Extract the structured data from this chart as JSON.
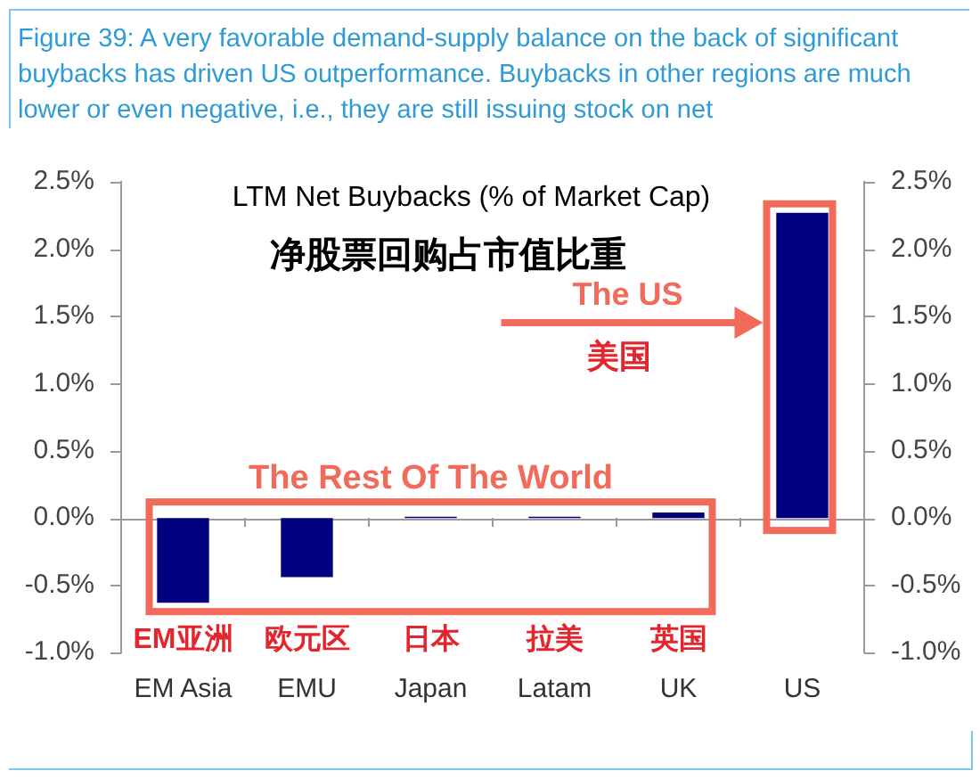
{
  "chart_data": {
    "type": "bar",
    "title": "Figure 39: A very favorable demand-supply balance on the back of significant buybacks has driven US outperformance. Buybacks in other regions are much lower or even negative, i.e., they are still issuing stock on net",
    "subtitle": "LTM Net Buybacks (% of Market Cap)",
    "categories": [
      "EM Asia",
      "EMU",
      "Japan",
      "Latam",
      "UK",
      "US"
    ],
    "values": [
      -0.63,
      -0.44,
      0.01,
      0.01,
      0.04,
      2.27
    ],
    "color": "#000080",
    "ylim": [
      -1,
      2.5
    ],
    "yticks": [
      {
        "value": -1,
        "label": "-1.0%"
      },
      {
        "value": -0.5,
        "label": "-0.5%"
      },
      {
        "value": 0,
        "label": "0.0%"
      },
      {
        "value": 0.5,
        "label": "0.5%"
      },
      {
        "value": 1,
        "label": "1.0%"
      },
      {
        "value": 1.5,
        "label": "1.5%"
      },
      {
        "value": 2,
        "label": "2.0%"
      },
      {
        "value": 2.5,
        "label": "2.5%"
      }
    ],
    "y2lim": [
      -1,
      2.5
    ],
    "y2ticks": [
      {
        "value": -1,
        "label": "-1.0%"
      },
      {
        "value": -0.5,
        "label": "-0.5%"
      },
      {
        "value": 0,
        "label": "0.0%"
      },
      {
        "value": 0.5,
        "label": "0.5%"
      },
      {
        "value": 1,
        "label": "1.0%"
      },
      {
        "value": 1.5,
        "label": "1.5%"
      },
      {
        "value": 2,
        "label": "2.0%"
      },
      {
        "value": 2.5,
        "label": "2.5%"
      }
    ],
    "grid": false,
    "ref_lines": [
      {
        "axis": "y",
        "value": 0,
        "color": "#9a9a9a"
      }
    ],
    "annotations": [
      "净股票回购占市值比重",
      "The US",
      "美国",
      "The Rest Of The World",
      "EM亚洲",
      "欧元区",
      "日本",
      "拉美",
      "英国"
    ]
  }
}
